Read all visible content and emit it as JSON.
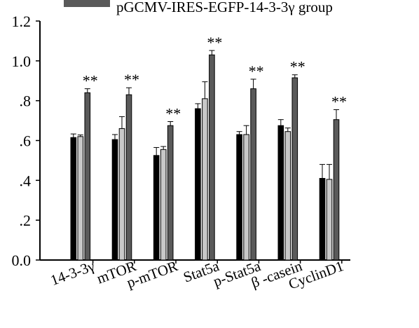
{
  "chart_data": {
    "type": "bar",
    "title": "",
    "xlabel": "",
    "ylabel": "",
    "ylim": [
      0,
      1.2
    ],
    "yticks": [
      {
        "value": 0,
        "label": "0.0"
      },
      {
        "value": 0.2,
        "label": ".2"
      },
      {
        "value": 0.4,
        "label": ".4"
      },
      {
        "value": 0.6,
        "label": ".6"
      },
      {
        "value": 0.8,
        "label": ".8"
      },
      {
        "value": 1.0,
        "label": "1.0"
      },
      {
        "value": 1.2,
        "label": "1.2"
      }
    ],
    "categories": [
      "14-3-3γ",
      "mTOR",
      "p-mTOR",
      "Stat5a",
      "p-Stat5a",
      "β -casein",
      "CyclinD1"
    ],
    "legend": {
      "visible_entry": "pGCMV-IRES-EGFP-14-3-3γ group"
    },
    "series": [
      {
        "color": "#000000",
        "values": [
          0.615,
          0.605,
          0.525,
          0.76,
          0.63,
          0.675,
          0.41
        ],
        "errors": [
          0.018,
          0.025,
          0.04,
          0.025,
          0.015,
          0.03,
          0.07
        ]
      },
      {
        "color": "#c8c8c8",
        "values": [
          0.62,
          0.66,
          0.555,
          0.81,
          0.63,
          0.645,
          0.405
        ],
        "errors": [
          0.008,
          0.06,
          0.015,
          0.085,
          0.045,
          0.018,
          0.075
        ]
      },
      {
        "name": "pGCMV-IRES-EGFP-14-3-3γ group",
        "color": "#5a5a5a",
        "values": [
          0.84,
          0.83,
          0.675,
          1.03,
          0.86,
          0.915,
          0.705
        ],
        "errors": [
          0.02,
          0.035,
          0.02,
          0.022,
          0.048,
          0.015,
          0.05
        ],
        "significance": [
          "**",
          "**",
          "**",
          "**",
          "**",
          "**",
          "**"
        ]
      }
    ]
  }
}
